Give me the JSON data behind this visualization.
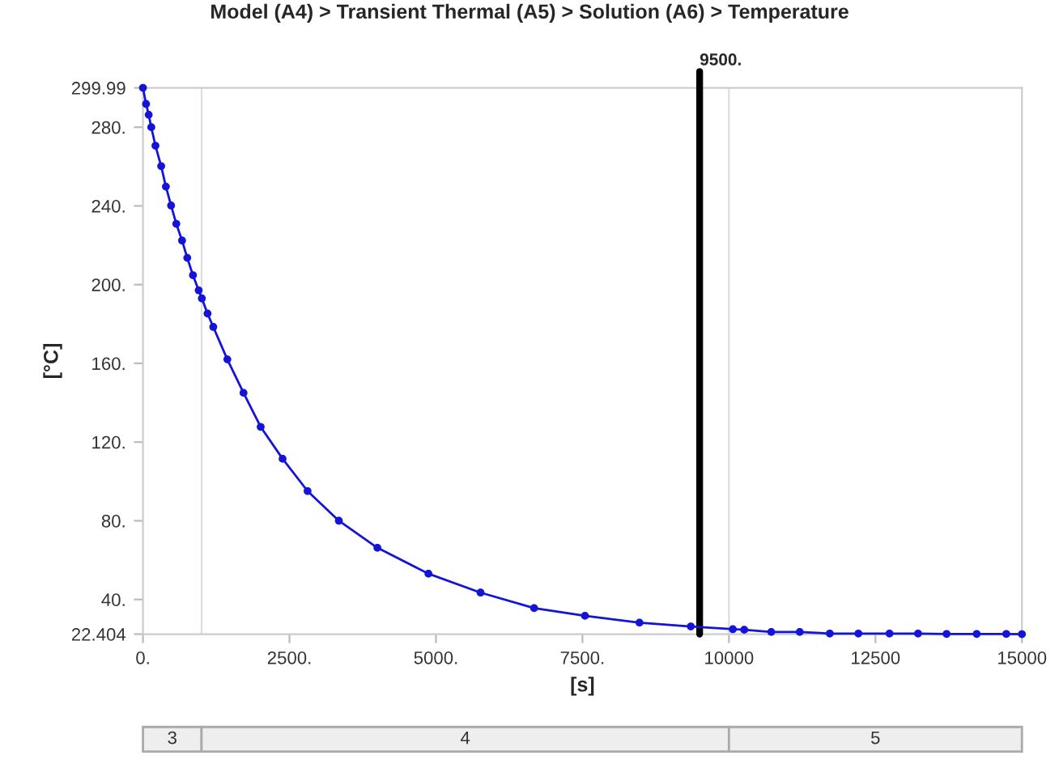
{
  "chart_data": {
    "type": "line",
    "title": "Model (A4) > Transient Thermal (A5) > Solution (A6) > Temperature",
    "xlabel": "[s]",
    "ylabel": "[°C]",
    "series": [
      {
        "color": "#1414d8",
        "x": [
          0,
          53,
          98,
          142,
          213,
          311,
          391,
          480,
          569,
          667,
          756,
          853,
          951,
          1005,
          1102,
          1200,
          1440,
          1716,
          2009,
          2383,
          2809,
          3343,
          4000,
          4872,
          5761,
          6675,
          7543,
          8473,
          9349,
          10066,
          10261,
          10722,
          11208,
          11721,
          12209,
          12740,
          13227,
          13714,
          14228,
          14733,
          15000
        ],
        "values": [
          299.99,
          291.8,
          286.3,
          280,
          270.6,
          260.2,
          249.8,
          240.2,
          230.9,
          222.4,
          213.6,
          204.8,
          197.1,
          193,
          185.3,
          178.5,
          162,
          145,
          127.7,
          111.5,
          95.1,
          80,
          66.3,
          53.1,
          43.5,
          35.6,
          31.7,
          28.2,
          26.3,
          24.9,
          24.6,
          23.5,
          23.5,
          22.7,
          22.7,
          22.7,
          22.7,
          22.5,
          22.5,
          22.5,
          22.404
        ]
      }
    ],
    "marker": "circle",
    "line_style": "solid",
    "grid": false,
    "legend": false,
    "xlim": [
      0,
      15000
    ],
    "xticks": [
      {
        "value": 0,
        "label": "0."
      },
      {
        "value": 2500,
        "label": "2500."
      },
      {
        "value": 5000,
        "label": "5000."
      },
      {
        "value": 7500,
        "label": "7500."
      },
      10000,
      12500,
      15000
    ],
    "ylim": [
      22.404,
      299.99
    ],
    "yticks": [
      22.404,
      {
        "value": 40,
        "label": "40."
      },
      {
        "value": 80,
        "label": "80."
      },
      {
        "value": 120,
        "label": "120."
      },
      {
        "value": 160,
        "label": "160."
      },
      {
        "value": 200,
        "label": "200."
      },
      {
        "value": 240,
        "label": "240."
      },
      {
        "value": 280,
        "label": "280."
      },
      299.99
    ],
    "ref_lines": [
      {
        "axis": "x",
        "value": 9500,
        "label": "9500.",
        "color": "#000000",
        "line_style": "solid"
      },
      {
        "axis": "x",
        "value": 1000,
        "color": "#dddddd",
        "line_style": "solid"
      },
      {
        "axis": "x",
        "value": 10000,
        "color": "#dddddd",
        "line_style": "solid"
      }
    ],
    "annotations": [
      "3",
      "4",
      "5"
    ]
  }
}
